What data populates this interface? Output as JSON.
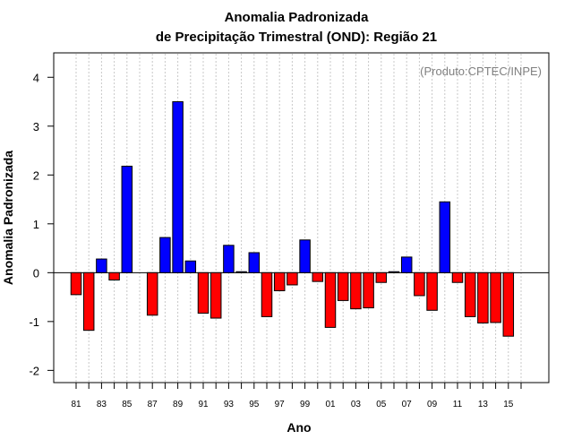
{
  "chart_data": {
    "type": "bar",
    "title": "Anomalia Padronizada",
    "subtitle": "de Precipitação Trimestral (OND): Região 21",
    "xlabel": "Ano",
    "ylabel": "Anomalia Padronizada",
    "credit": "(Produto:CPTEC/INPE)",
    "ylim": [
      -2.25,
      4.5
    ],
    "yticks": [
      -2,
      -1,
      0,
      1,
      2,
      3,
      4
    ],
    "xtick_labels": [
      "81",
      "83",
      "85",
      "87",
      "89",
      "91",
      "93",
      "95",
      "97",
      "99",
      "01",
      "03",
      "05",
      "07",
      "09",
      "11",
      "13",
      "15"
    ],
    "categories": [
      "1981",
      "1982",
      "1983",
      "1984",
      "1985",
      "1986",
      "1987",
      "1988",
      "1989",
      "1990",
      "1991",
      "1992",
      "1993",
      "1994",
      "1995",
      "1996",
      "1997",
      "1998",
      "1999",
      "2000",
      "2001",
      "2002",
      "2003",
      "2004",
      "2005",
      "2006",
      "2007",
      "2008",
      "2009",
      "2010",
      "2011",
      "2012",
      "2013",
      "2014",
      "2015"
    ],
    "values": [
      -0.45,
      -1.18,
      0.28,
      -0.15,
      2.18,
      0.0,
      -0.87,
      0.72,
      3.5,
      0.24,
      -0.83,
      -0.93,
      0.56,
      0.02,
      0.41,
      -0.9,
      -0.37,
      -0.25,
      0.67,
      -0.18,
      -1.12,
      -0.57,
      -0.74,
      -0.72,
      -0.2,
      0.02,
      0.32,
      -0.47,
      -0.77,
      1.45,
      -0.2,
      -0.9,
      -1.03,
      -1.02,
      -1.3
    ],
    "grid": true,
    "colors": {
      "positive": "#0000ff",
      "negative": "#ff0000",
      "grid": "#c8c8c8",
      "zero_line": "#000000",
      "credit": "#808080"
    }
  }
}
